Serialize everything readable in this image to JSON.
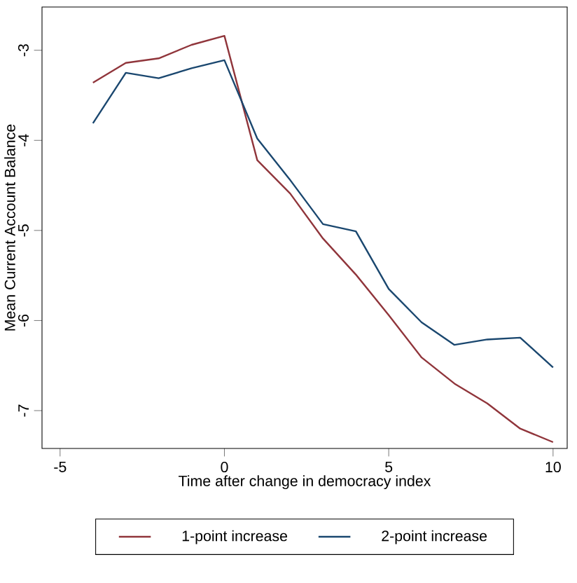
{
  "chart_data": {
    "type": "line",
    "xlabel": "Time after change in democracy index",
    "ylabel": "Mean Current Account Balance",
    "x": [
      -4,
      -3,
      -2,
      -1,
      0,
      1,
      2,
      3,
      4,
      5,
      6,
      7,
      8,
      9,
      10
    ],
    "series": [
      {
        "name": "1-point increase",
        "color": "#90353b",
        "values": [
          -3.36,
          -3.14,
          -3.09,
          -2.94,
          -2.84,
          -4.22,
          -4.59,
          -5.09,
          -5.49,
          -5.94,
          -6.41,
          -6.7,
          -6.92,
          -7.2,
          -7.35
        ]
      },
      {
        "name": "2-point increase",
        "color": "#1a476f",
        "values": [
          -3.81,
          -3.25,
          -3.31,
          -3.2,
          -3.11,
          -3.98,
          -4.44,
          -4.93,
          -5.01,
          -5.65,
          -6.02,
          -6.27,
          -6.21,
          -6.19,
          -6.52
        ]
      }
    ],
    "xlim": [
      -5.55,
      10.43
    ],
    "ylim": [
      -7.42,
      -2.52
    ],
    "xticks": [
      -5,
      0,
      5,
      10
    ],
    "yticks": [
      -7,
      -6,
      -5,
      -4,
      -3
    ],
    "legend": "bottom"
  }
}
